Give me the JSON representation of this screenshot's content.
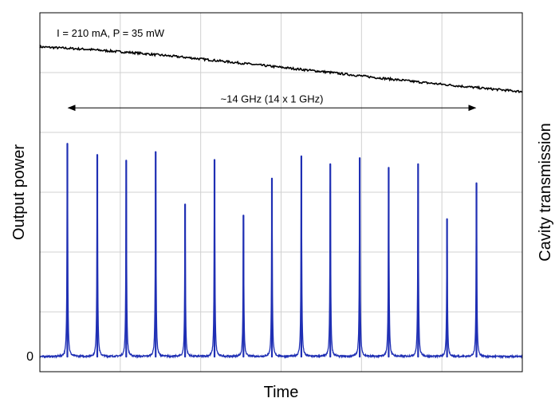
{
  "chart_data": {
    "type": "line",
    "title": "",
    "xlabel": "Time",
    "ylabel": "Output power",
    "y2label": "Cavity transmission",
    "xlim": [
      0,
      100
    ],
    "ylim": [
      0,
      100
    ],
    "grid": true,
    "y_tick_labels": [
      {
        "value": 0,
        "label": "0"
      }
    ],
    "colors": {
      "power": "#000000",
      "transmission": "#1f2fb4",
      "grid": "#d0d0d0",
      "frame": "#000000",
      "y2label": "#1f2fb4"
    },
    "series": [
      {
        "axis": "left",
        "x": [
          0,
          10,
          20,
          30,
          40,
          50,
          60,
          70,
          80,
          90,
          100
        ],
        "values": [
          90.5,
          89.8,
          88.8,
          87.6,
          86.2,
          84.8,
          83.4,
          81.9,
          80.5,
          79.2,
          78.0
        ]
      },
      {
        "axis": "right",
        "baseline": 4.2,
        "peak_x": [
          5.7,
          11.9,
          17.9,
          24.0,
          30.1,
          36.2,
          42.2,
          48.1,
          54.2,
          60.2,
          66.3,
          72.3,
          78.4,
          84.4,
          90.5
        ],
        "peak_heights": [
          63.5,
          60.4,
          58.8,
          61.2,
          46.6,
          59.0,
          43.5,
          53.8,
          60.0,
          57.8,
          59.5,
          56.8,
          57.8,
          42.5,
          52.5
        ]
      }
    ],
    "annotations": [
      {
        "type": "text",
        "text": "I = 210 mA, P = 35 mW",
        "x": 3.5,
        "y": 94.5
      },
      {
        "type": "double-arrow",
        "text": "~14 GHz (14 x 1 GHz)",
        "x1": 5.9,
        "x2": 90.3,
        "y": 73.5
      }
    ]
  }
}
